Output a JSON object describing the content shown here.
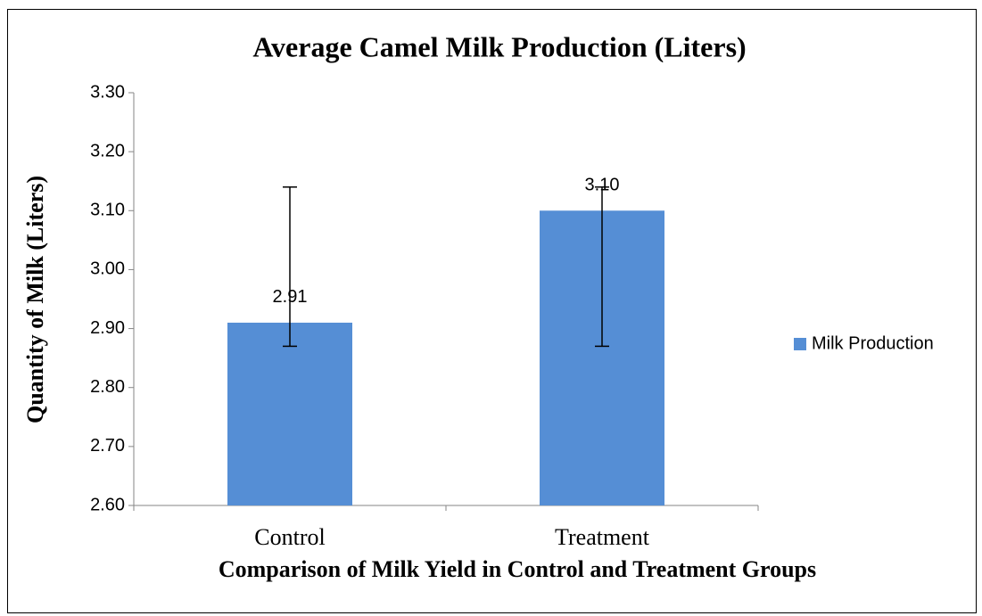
{
  "chart_data": {
    "type": "bar",
    "title": "Average Camel Milk Production (Liters)",
    "xlabel": "Comparison of Milk Yield in Control and Treatment Groups",
    "ylabel": "Quantity of Milk (Liters)",
    "categories": [
      "Control",
      "Treatment"
    ],
    "series": [
      {
        "name": "Milk Production",
        "color": "#558ed5",
        "values": [
          2.91,
          3.1
        ],
        "value_labels": [
          "2.91",
          "3.10"
        ],
        "errors": [
          [
            0.04,
            0.23
          ],
          [
            0.23,
            0.04
          ]
        ]
      }
    ],
    "ylim": [
      2.6,
      3.3
    ],
    "yticks": [
      {
        "value": 2.6,
        "label": "2.60"
      },
      {
        "value": 2.7,
        "label": "2.70"
      },
      {
        "value": 2.8,
        "label": "2.80"
      },
      {
        "value": 2.9,
        "label": "2.90"
      },
      {
        "value": 3.0,
        "label": "3.00"
      },
      {
        "value": 3.1,
        "label": "3.10"
      },
      {
        "value": 3.2,
        "label": "3.20"
      },
      {
        "value": 3.3,
        "label": "3.30"
      }
    ],
    "grid": false,
    "legend": "right"
  }
}
